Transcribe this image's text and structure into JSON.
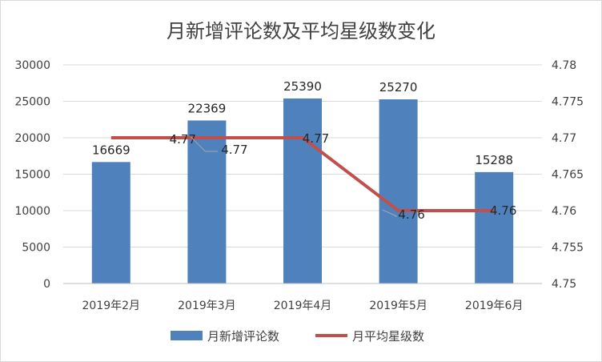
{
  "chart_data": {
    "type": "bar",
    "title": "月新增评论数及平均星级数变化",
    "categories": [
      "2019年2月",
      "2019年3月",
      "2019年4月",
      "2019年5月",
      "2019年6月"
    ],
    "series": [
      {
        "name": "月新增评论数",
        "type": "bar",
        "axis": "left",
        "color": "#4f81bd",
        "values": [
          16669,
          22369,
          25390,
          25270,
          15288
        ],
        "labels": [
          "16669",
          "22369",
          "25390",
          "25270",
          "15288"
        ]
      },
      {
        "name": "月平均星级数",
        "type": "line",
        "axis": "right",
        "color": "#c0504d",
        "values": [
          4.77,
          4.77,
          4.77,
          4.76,
          4.76
        ],
        "labels": [
          "4.77",
          "4.77",
          "4.77",
          "4.76",
          "4.76"
        ]
      }
    ],
    "y_left": {
      "range": [
        0,
        30000
      ],
      "ticks": [
        "0",
        "5000",
        "10000",
        "15000",
        "20000",
        "25000",
        "30000"
      ]
    },
    "y_right": {
      "range": [
        4.75,
        4.78
      ],
      "ticks": [
        "4.75",
        "4.755",
        "4.76",
        "4.765",
        "4.77",
        "4.775",
        "4.78"
      ]
    },
    "grid": true,
    "legend_position": "bottom"
  }
}
